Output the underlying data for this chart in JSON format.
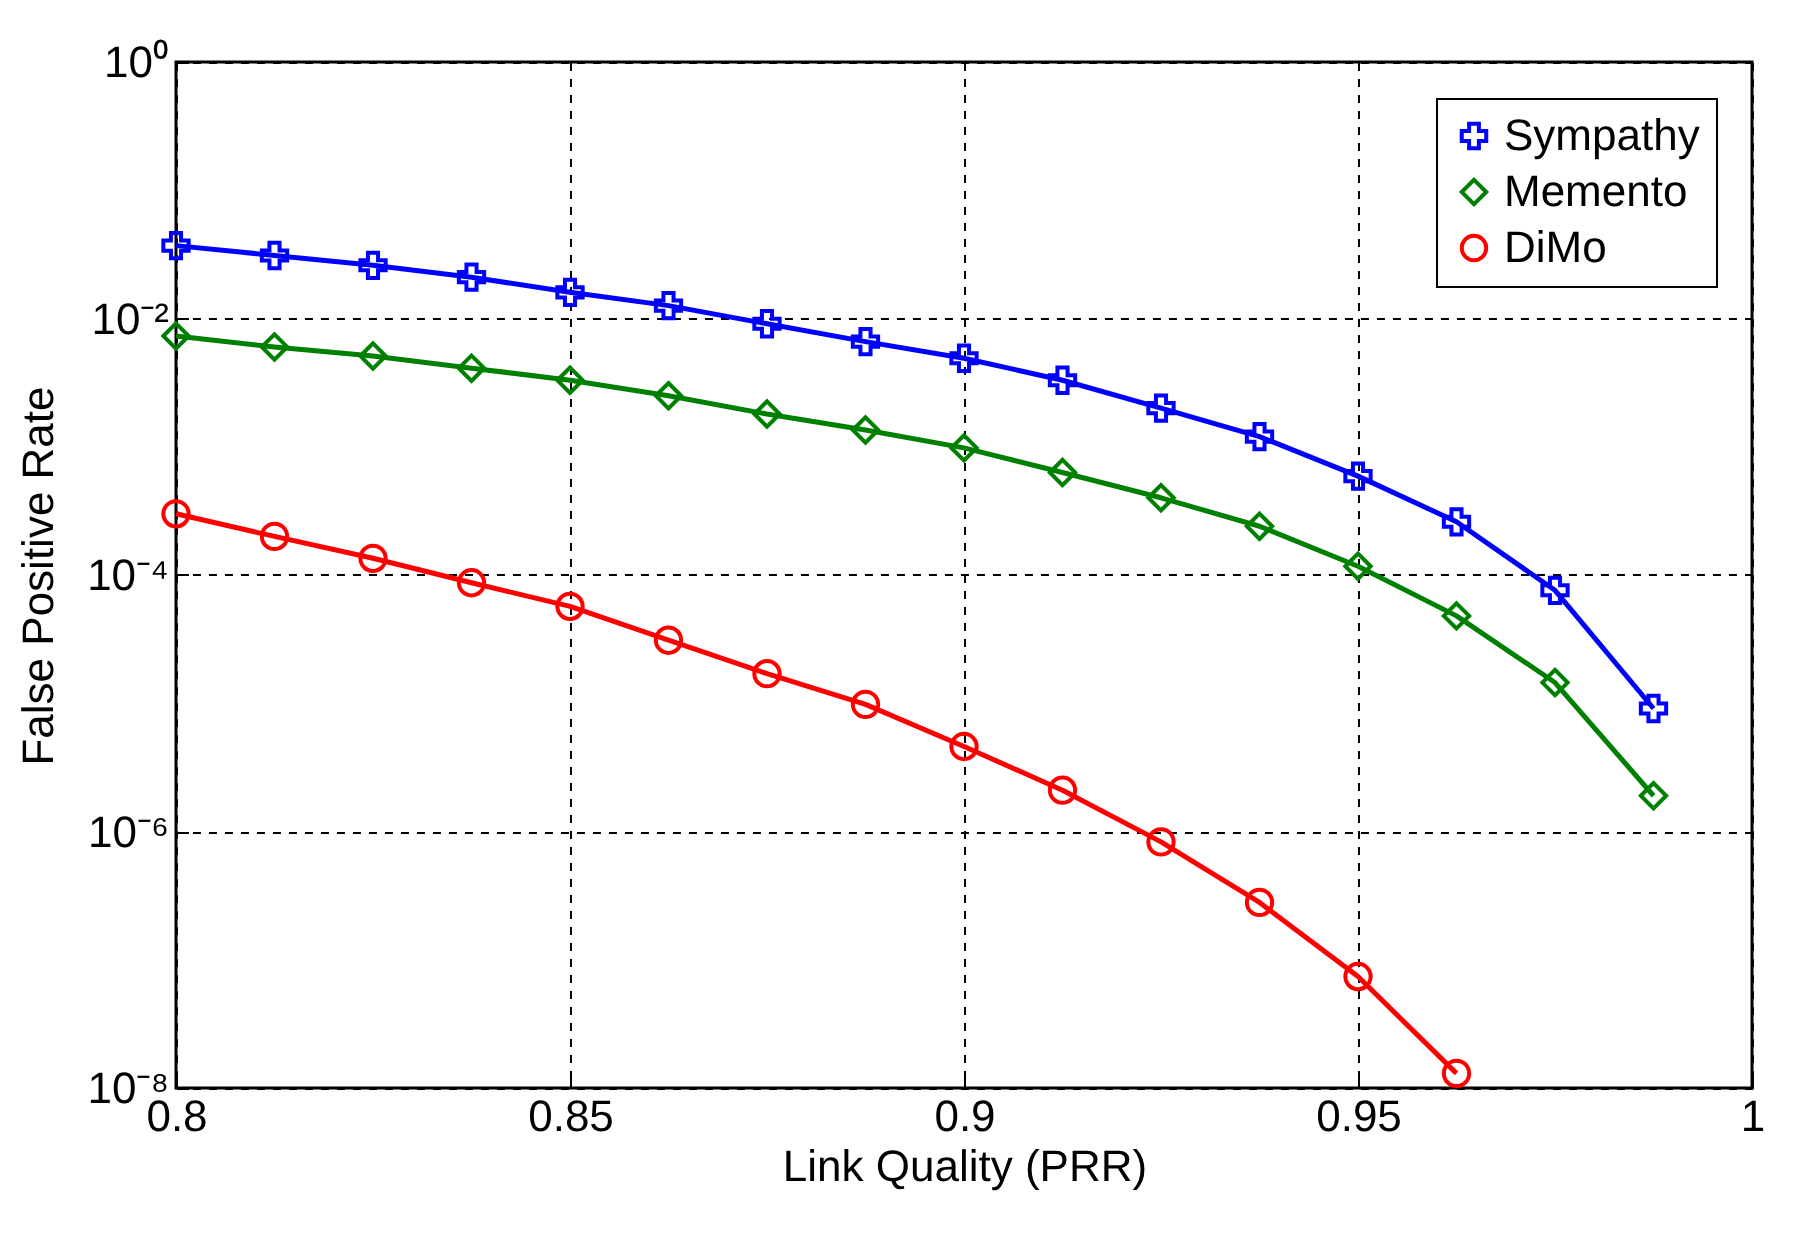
{
  "chart_data": {
    "type": "line",
    "xlabel": "Link Quality (PRR)",
    "ylabel": "False Positive Rate",
    "x": [
      0.8,
      0.8125,
      0.825,
      0.8375,
      0.85,
      0.8625,
      0.875,
      0.8875,
      0.9,
      0.9125,
      0.925,
      0.9375,
      0.95,
      0.9625,
      0.975,
      0.9875
    ],
    "series": [
      {
        "name": "Sympathy",
        "color": "#0000ff",
        "marker": "cross",
        "values": [
          0.037,
          0.031,
          0.026,
          0.021,
          0.016,
          0.0126,
          0.0091,
          0.0066,
          0.0049,
          0.0033,
          0.002,
          0.0012,
          0.00059,
          0.00026,
          7.6e-05,
          9.1e-06
        ]
      },
      {
        "name": "Memento",
        "color": "#008000",
        "marker": "diamond",
        "values": [
          0.0073,
          0.006,
          0.0051,
          0.0041,
          0.0033,
          0.0025,
          0.0018,
          0.00135,
          0.00098,
          0.00063,
          0.0004,
          0.00024,
          0.000117,
          4.8e-05,
          1.45e-05,
          1.9e-06
        ]
      },
      {
        "name": "DiMo",
        "color": "#ff0000",
        "marker": "circle",
        "values": [
          0.0003,
          0.0002,
          0.000135,
          8.7e-05,
          5.7e-05,
          3.1e-05,
          1.7e-05,
          9.8e-06,
          4.6e-06,
          2.1e-06,
          8.3e-07,
          2.8e-07,
          7.4e-08,
          1.3e-08,
          null,
          null
        ]
      }
    ],
    "log": "y",
    "xlim": [
      0.8,
      1
    ],
    "xticks": [
      0.8,
      0.85,
      0.9,
      0.95,
      1
    ],
    "ylim": [
      1e-08,
      1
    ],
    "yticks": [
      {
        "value": 1e-08,
        "label": "10⁻⁸"
      },
      {
        "value": 1e-06,
        "label": "10⁻⁶"
      },
      {
        "value": 0.0001,
        "label": "10⁻⁴"
      },
      {
        "value": 0.01,
        "label": "10⁻²"
      },
      {
        "value": 1,
        "label": "10⁰"
      }
    ],
    "grid": true,
    "legend": "top right",
    "line_style": "solid"
  }
}
